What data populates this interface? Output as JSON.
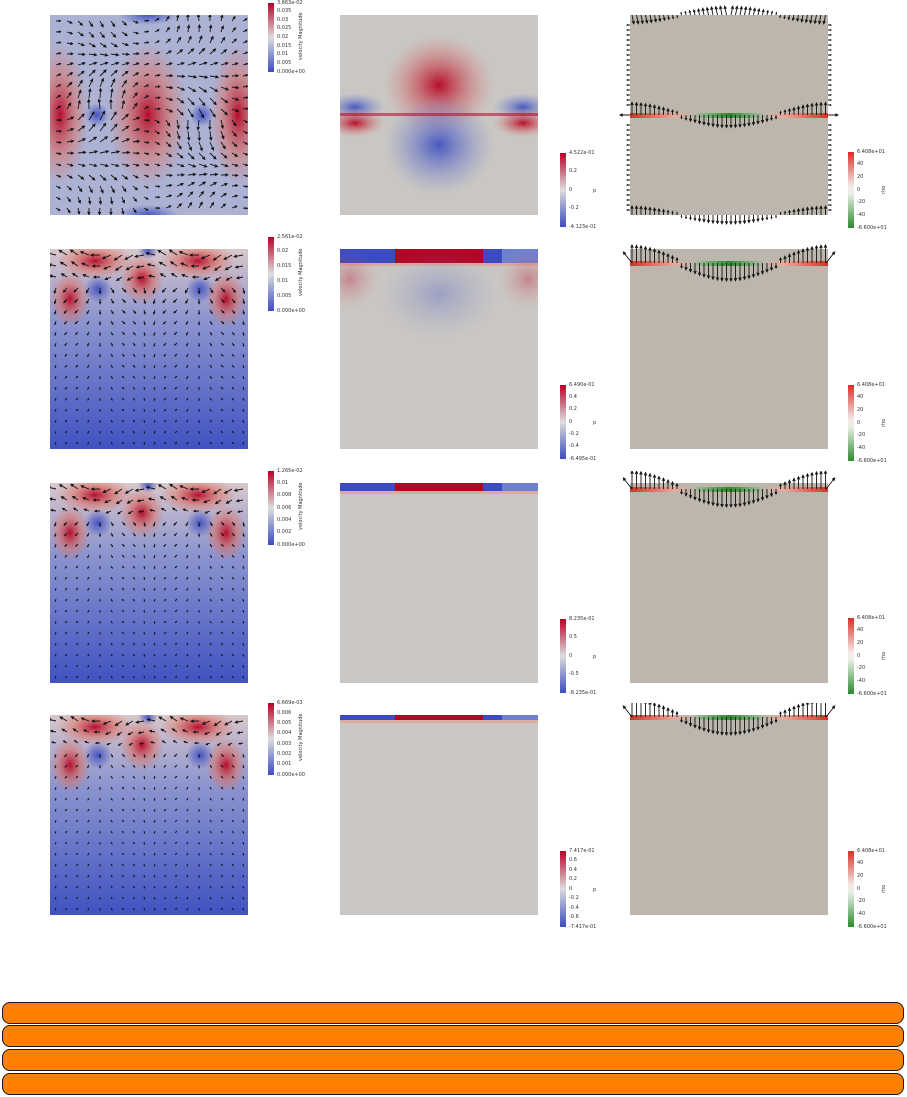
{
  "rows": [
    {
      "velocity": {
        "colorbar": {
          "title": "velocity Magnitude",
          "ticks": [
            "3.863e-02",
            "0.035",
            "0.03",
            "0.025",
            "0.02",
            "0.015",
            "0.01",
            "0.005",
            "0.000e+00"
          ]
        }
      },
      "pressure": {
        "colorbar": {
          "title": "p",
          "ticks": [
            "4.522e-01",
            "0.2",
            "0",
            "-0.2",
            "-4.123e-01"
          ]
        }
      },
      "rho": {
        "colorbar": {
          "title": "rho",
          "ticks": [
            "6.408e+01",
            "40",
            "20",
            "0",
            "-20",
            "-40",
            "-6.600e+01"
          ]
        }
      }
    },
    {
      "velocity": {
        "colorbar": {
          "title": "velocity Magnitude",
          "ticks": [
            "2.561e-02",
            "0.02",
            "0.015",
            "0.01",
            "0.005",
            "0.000e+00"
          ]
        }
      },
      "pressure": {
        "colorbar": {
          "title": "p",
          "ticks": [
            "6.490e-01",
            "0.4",
            "0.2",
            "0",
            "-0.2",
            "-0.4",
            "-6.495e-01"
          ]
        }
      },
      "rho": {
        "colorbar": {
          "title": "rho",
          "ticks": [
            "6.408e+01",
            "40",
            "20",
            "0",
            "-20",
            "-40",
            "-6.600e+01"
          ]
        }
      }
    },
    {
      "velocity": {
        "colorbar": {
          "title": "velocity Magnitude",
          "ticks": [
            "1.265e-02",
            "0.01",
            "0.008",
            "0.006",
            "0.004",
            "0.002",
            "0.000e+00"
          ]
        }
      },
      "pressure": {
        "colorbar": {
          "title": "p",
          "ticks": [
            "8.235e-01",
            "0.5",
            "0",
            "-0.5",
            "-8.235e-01"
          ]
        }
      },
      "rho": {
        "colorbar": {
          "title": "rho",
          "ticks": [
            "6.408e+01",
            "40",
            "20",
            "0",
            "-20",
            "-40",
            "-6.600e+01"
          ]
        }
      }
    },
    {
      "velocity": {
        "colorbar": {
          "title": "velocity Magnitude",
          "ticks": [
            "6.669e-03",
            "0.006",
            "0.005",
            "0.004",
            "0.003",
            "0.002",
            "0.001",
            "0.000e+00"
          ]
        }
      },
      "pressure": {
        "colorbar": {
          "title": "p",
          "ticks": [
            "7.417e-01",
            "0.6",
            "0.4",
            "0.2",
            "0",
            "-0.2",
            "-0.4",
            "-0.6",
            "-7.417e-01"
          ]
        }
      },
      "rho": {
        "colorbar": {
          "title": "rho",
          "ticks": [
            "6.408e+01",
            "40",
            "20",
            "0",
            "-20",
            "-40",
            "-6.600e+01"
          ]
        }
      }
    }
  ],
  "colors": {
    "cool_warm_low": "#3b4cc0",
    "cool_warm_mid": "#dddddd",
    "cool_warm_high": "#b40426",
    "rho_neutral": "#bcb6ac",
    "rho_positive": "#d73027",
    "rho_negative": "#2e8b2e",
    "bar_fill": "#ff7f00"
  },
  "bars": [
    {},
    {},
    {},
    {}
  ]
}
